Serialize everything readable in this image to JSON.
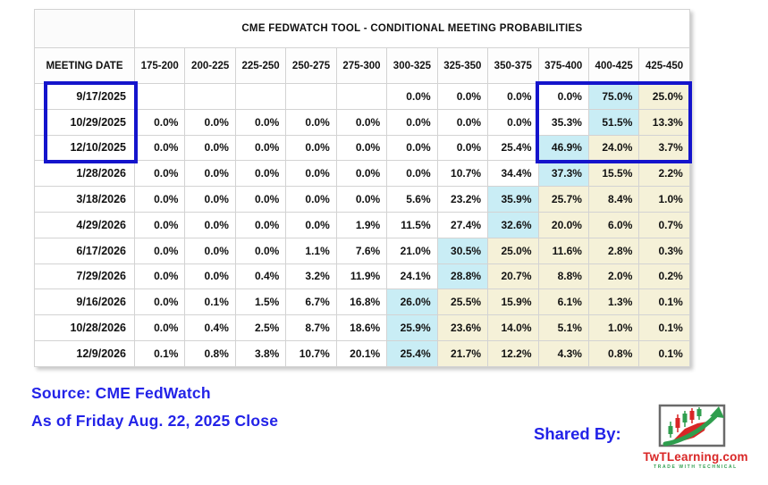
{
  "chart_data": {
    "type": "table",
    "title": "CME FEDWATCH TOOL - CONDITIONAL MEETING PROBABILITIES",
    "date_column_header": "MEETING DATE",
    "rate_range_headers": [
      "175-200",
      "200-225",
      "225-250",
      "250-275",
      "275-300",
      "300-325",
      "325-350",
      "350-375",
      "375-400",
      "400-425",
      "425-450"
    ],
    "rows": [
      {
        "date": "9/17/2025",
        "values": [
          "",
          "",
          "",
          "",
          "",
          "0.0%",
          "0.0%",
          "0.0%",
          "0.0%",
          "75.0%",
          "25.0%"
        ],
        "cyan_index": 9
      },
      {
        "date": "10/29/2025",
        "values": [
          "0.0%",
          "0.0%",
          "0.0%",
          "0.0%",
          "0.0%",
          "0.0%",
          "0.0%",
          "0.0%",
          "35.3%",
          "51.5%",
          "13.3%"
        ],
        "cyan_index": 9
      },
      {
        "date": "12/10/2025",
        "values": [
          "0.0%",
          "0.0%",
          "0.0%",
          "0.0%",
          "0.0%",
          "0.0%",
          "0.0%",
          "25.4%",
          "46.9%",
          "24.0%",
          "3.7%"
        ],
        "cyan_index": 8
      },
      {
        "date": "1/28/2026",
        "values": [
          "0.0%",
          "0.0%",
          "0.0%",
          "0.0%",
          "0.0%",
          "0.0%",
          "10.7%",
          "34.4%",
          "37.3%",
          "15.5%",
          "2.2%"
        ],
        "cyan_index": 8
      },
      {
        "date": "3/18/2026",
        "values": [
          "0.0%",
          "0.0%",
          "0.0%",
          "0.0%",
          "0.0%",
          "5.6%",
          "23.2%",
          "35.9%",
          "25.7%",
          "8.4%",
          "1.0%"
        ],
        "cyan_index": 7
      },
      {
        "date": "4/29/2026",
        "values": [
          "0.0%",
          "0.0%",
          "0.0%",
          "0.0%",
          "1.9%",
          "11.5%",
          "27.4%",
          "32.6%",
          "20.0%",
          "6.0%",
          "0.7%"
        ],
        "cyan_index": 7
      },
      {
        "date": "6/17/2026",
        "values": [
          "0.0%",
          "0.0%",
          "0.0%",
          "1.1%",
          "7.6%",
          "21.0%",
          "30.5%",
          "25.0%",
          "11.6%",
          "2.8%",
          "0.3%"
        ],
        "cyan_index": 6
      },
      {
        "date": "7/29/2026",
        "values": [
          "0.0%",
          "0.0%",
          "0.4%",
          "3.2%",
          "11.9%",
          "24.1%",
          "28.8%",
          "20.7%",
          "8.8%",
          "2.0%",
          "0.2%"
        ],
        "cyan_index": 6
      },
      {
        "date": "9/16/2026",
        "values": [
          "0.0%",
          "0.1%",
          "1.5%",
          "6.7%",
          "16.8%",
          "26.0%",
          "25.5%",
          "15.9%",
          "6.1%",
          "1.3%",
          "0.1%"
        ],
        "cyan_index": 5
      },
      {
        "date": "10/28/2026",
        "values": [
          "0.0%",
          "0.4%",
          "2.5%",
          "8.7%",
          "18.6%",
          "25.9%",
          "23.6%",
          "14.0%",
          "5.1%",
          "1.0%",
          "0.1%"
        ],
        "cyan_index": 5
      },
      {
        "date": "12/9/2026",
        "values": [
          "0.1%",
          "0.8%",
          "3.8%",
          "10.7%",
          "20.1%",
          "25.4%",
          "21.7%",
          "12.2%",
          "4.3%",
          "0.8%",
          "0.1%"
        ],
        "cyan_index": 5
      }
    ],
    "highlight_legend": {
      "cyan": "highest probability in row",
      "yellow": "cells above the highest-probability rate range",
      "blue_boxes": "first three meeting dates and 375-450 rate columns"
    }
  },
  "footer": {
    "source": "Source: CME FedWatch",
    "as_of": "As of Friday Aug. 22, 2025 Close",
    "shared_by": "Shared By:"
  },
  "logo": {
    "name": "TwTLearning.com",
    "tagline": "TRADE WITH TECHNICAL"
  },
  "colors": {
    "cyan_highlight": "#c9edf5",
    "yellow_highlight": "#f5f1d8",
    "highlight_box_border": "#1414cc",
    "footer_text_blue": "#2323e8",
    "logo_red": "#d92626",
    "logo_green": "#2f9e4e"
  }
}
